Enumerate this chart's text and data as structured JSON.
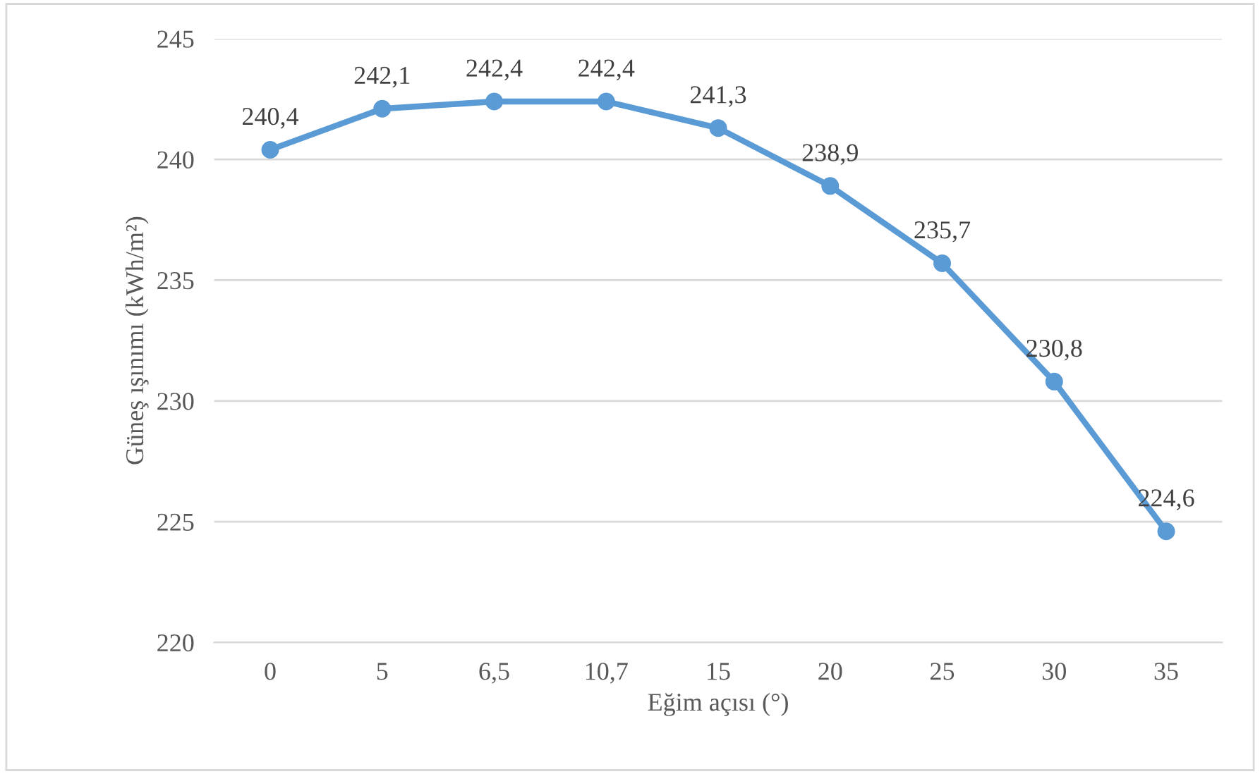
{
  "chart_data": {
    "type": "line",
    "xlabel": "Eğim açısı (°)",
    "ylabel": "Güneş ışınımı (kWh/m²)",
    "categories": [
      "0",
      "5",
      "6,5",
      "10,7",
      "15",
      "20",
      "25",
      "30",
      "35"
    ],
    "series": [
      {
        "color": "#5b9bd5",
        "values": [
          240.4,
          242.1,
          242.4,
          242.4,
          241.3,
          238.9,
          235.7,
          230.8,
          224.6
        ],
        "value_labels": [
          "240,4",
          "242,1",
          "242,4",
          "242,4",
          "241,3",
          "238,9",
          "235,7",
          "230,8",
          "224,6"
        ]
      }
    ],
    "ylim": [
      220,
      245
    ],
    "yticks": [
      220,
      225,
      230,
      235,
      240,
      245
    ],
    "grid": "y",
    "marker": "circle",
    "line_style": "solid",
    "legend": false
  }
}
